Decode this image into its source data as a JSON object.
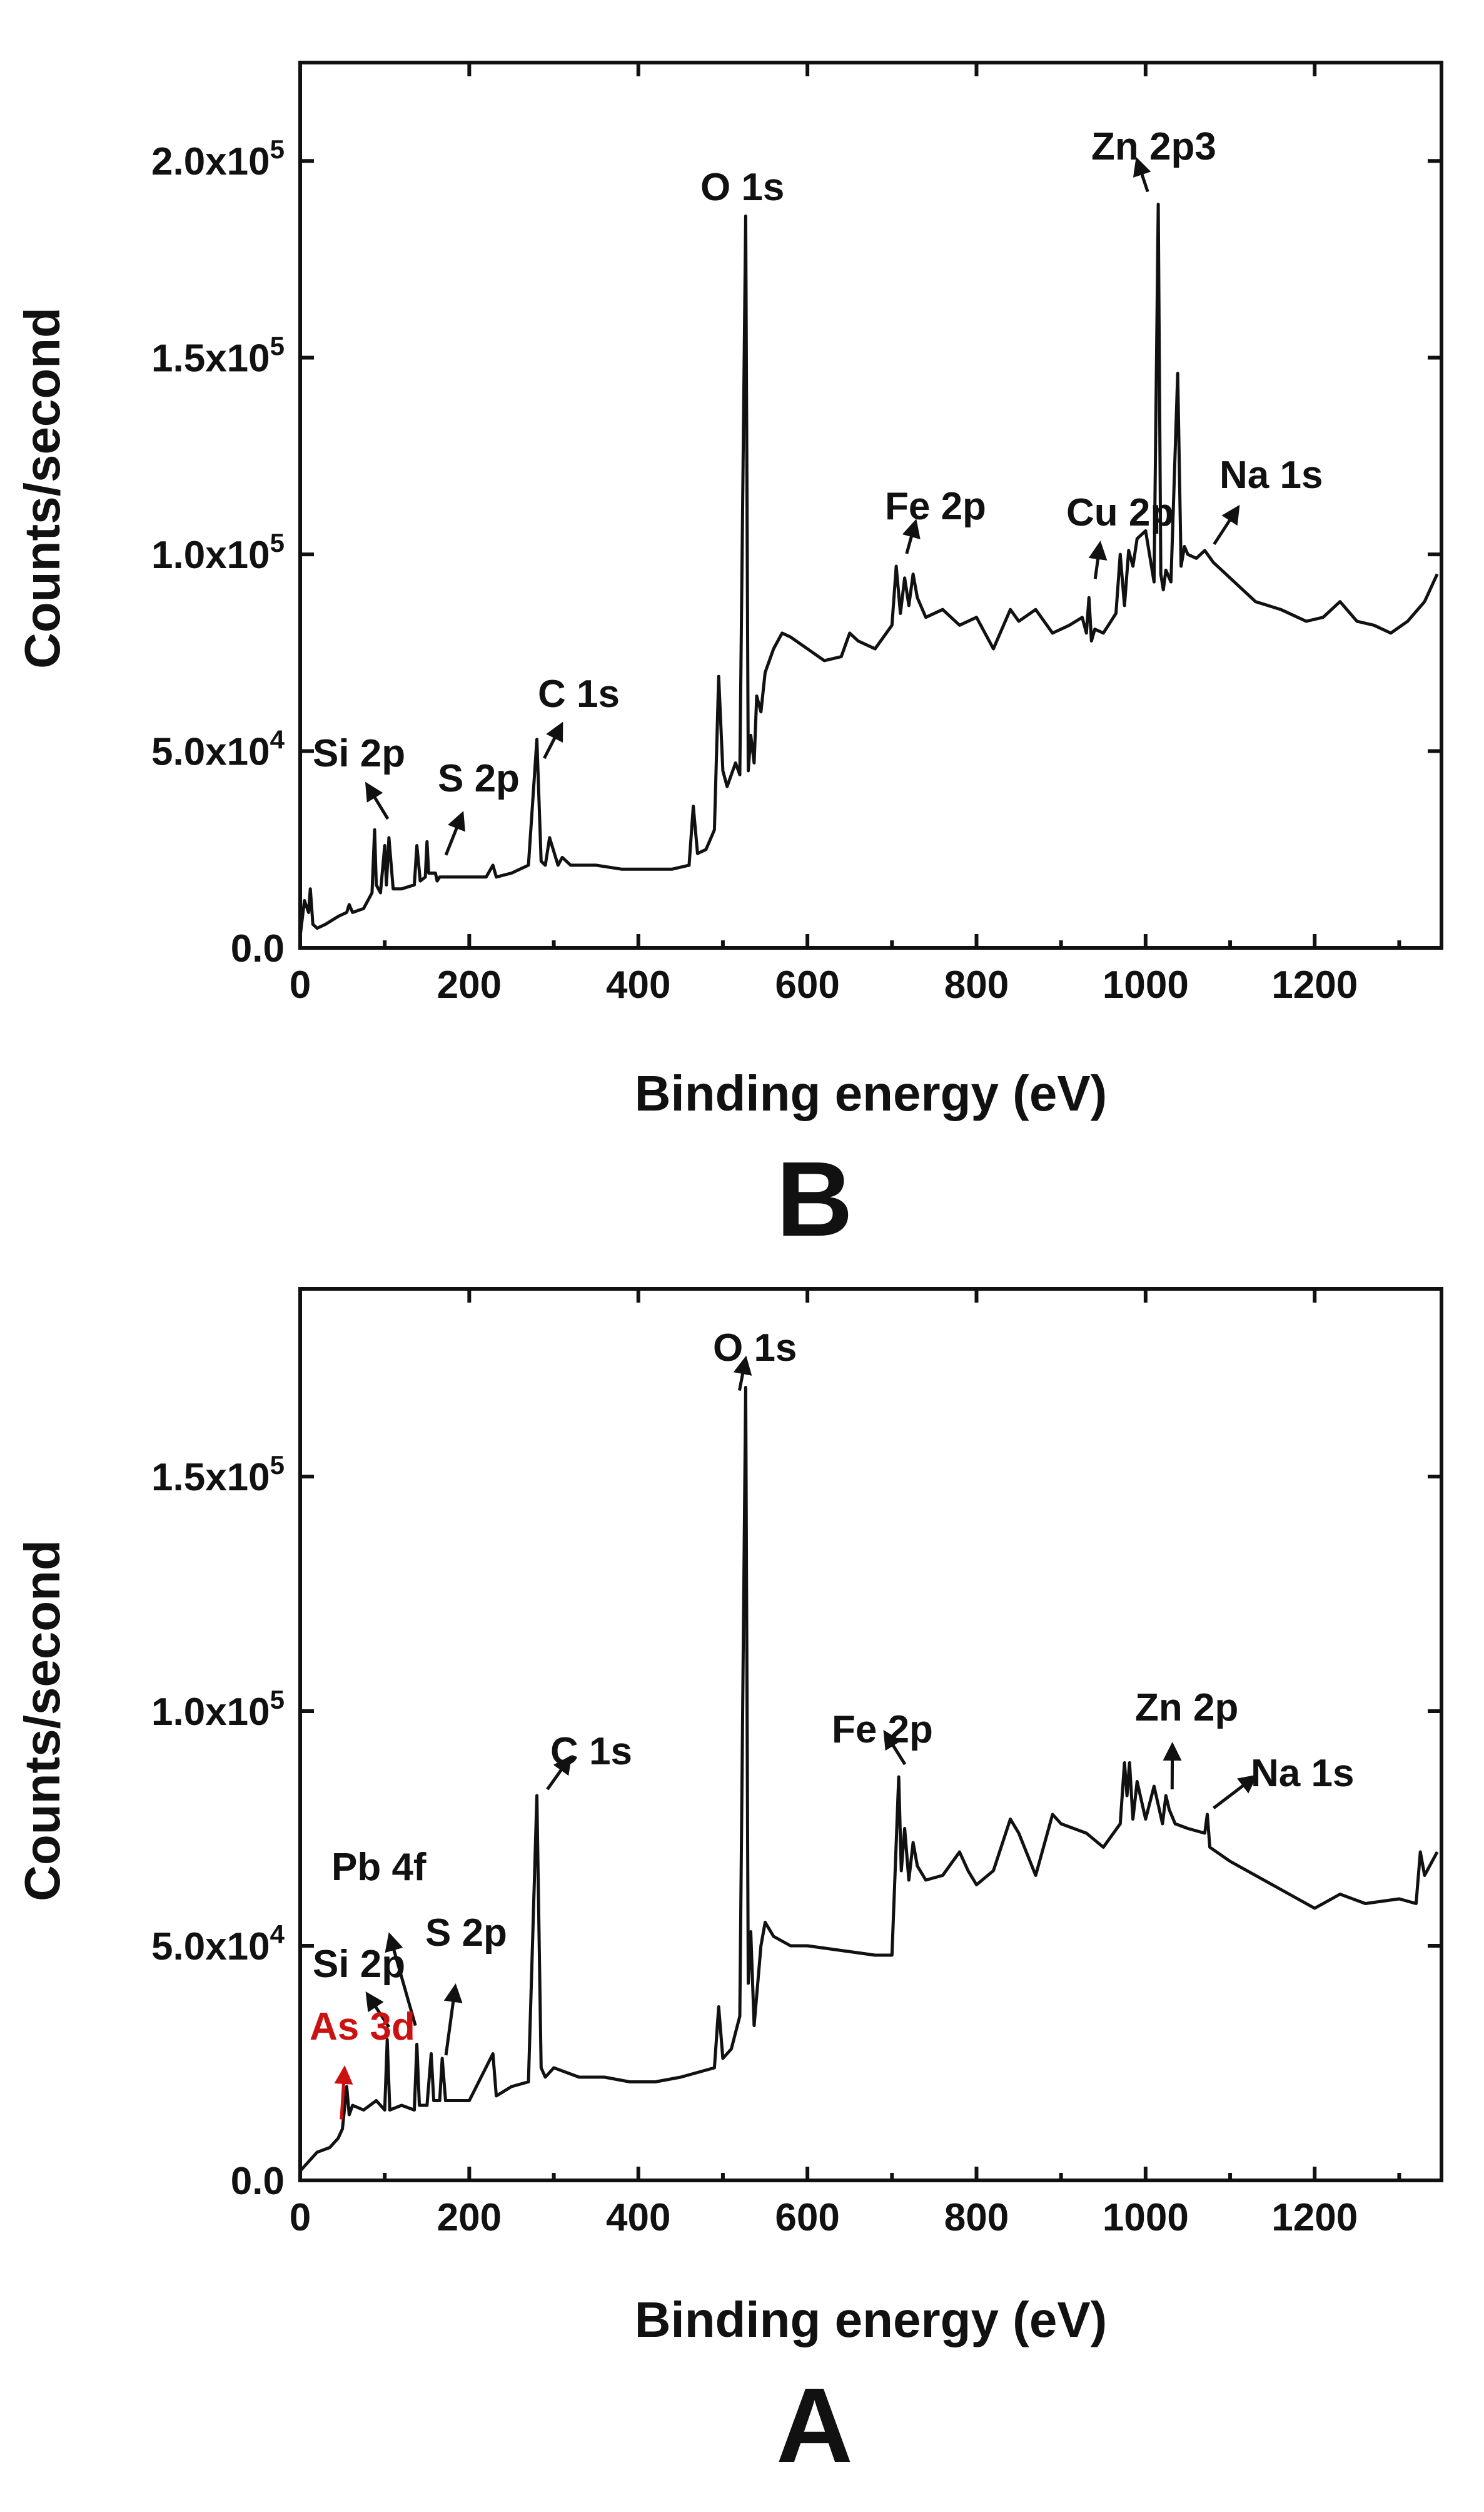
{
  "chart_data": [
    {
      "type": "line",
      "panel_label": "B",
      "xlabel": "Binding energy (eV)",
      "ylabel": "Counts/second",
      "xlim": [
        0,
        1350
      ],
      "ylim": [
        0,
        225000
      ],
      "xticks": [
        0,
        200,
        400,
        600,
        800,
        1000,
        1200
      ],
      "xtick_labels": [
        "0",
        "200",
        "400",
        "600",
        "800",
        "1000",
        "1200"
      ],
      "yticks": [
        0,
        50000,
        100000,
        150000,
        200000
      ],
      "ytick_labels": [
        {
          "mantissa": "0.0",
          "exp": ""
        },
        {
          "mantissa": "5.0x10",
          "exp": "4"
        },
        {
          "mantissa": "1.0x10",
          "exp": "5"
        },
        {
          "mantissa": "1.5x10",
          "exp": "5"
        },
        {
          "mantissa": "2.0x10",
          "exp": "5"
        }
      ],
      "grid": false,
      "series_color": "#111111",
      "x": [
        0,
        5,
        10,
        12,
        15,
        20,
        30,
        45,
        55,
        58,
        62,
        75,
        85,
        88,
        90,
        95,
        100,
        102,
        105,
        110,
        120,
        135,
        138,
        142,
        148,
        150,
        152,
        160,
        162,
        165,
        180,
        200,
        220,
        228,
        232,
        250,
        270,
        280,
        285,
        290,
        295,
        305,
        310,
        320,
        350,
        380,
        400,
        420,
        440,
        460,
        465,
        470,
        480,
        490,
        495,
        500,
        505,
        510,
        515,
        520,
        527,
        530,
        533,
        537,
        540,
        545,
        550,
        560,
        570,
        580,
        600,
        620,
        640,
        650,
        660,
        680,
        700,
        705,
        710,
        715,
        720,
        725,
        730,
        740,
        760,
        780,
        800,
        820,
        840,
        850,
        870,
        890,
        910,
        925,
        930,
        933,
        936,
        940,
        950,
        965,
        970,
        975,
        980,
        985,
        990,
        1000,
        1010,
        1015,
        1018,
        1021,
        1024,
        1030,
        1038,
        1042,
        1046,
        1050,
        1060,
        1070,
        1080,
        1100,
        1130,
        1160,
        1190,
        1210,
        1230,
        1250,
        1270,
        1290,
        1310,
        1330,
        1345
      ],
      "y": [
        3000,
        12000,
        9000,
        15000,
        6000,
        5000,
        6000,
        8000,
        9000,
        11000,
        9000,
        10000,
        14000,
        30000,
        16000,
        14000,
        26000,
        16000,
        28000,
        15000,
        15000,
        16000,
        26000,
        17000,
        18000,
        27000,
        19000,
        19000,
        17000,
        18000,
        18000,
        18000,
        18000,
        21000,
        18000,
        19000,
        21000,
        53000,
        22000,
        21000,
        28000,
        21000,
        23000,
        21000,
        21000,
        20000,
        20000,
        20000,
        20000,
        21000,
        36000,
        24000,
        25000,
        30000,
        69000,
        45000,
        41000,
        44000,
        47000,
        44000,
        186000,
        45000,
        54000,
        47000,
        64000,
        60000,
        70000,
        76000,
        80000,
        79000,
        76000,
        73000,
        74000,
        80000,
        78000,
        76000,
        82000,
        97000,
        85000,
        94000,
        87000,
        95000,
        89000,
        84000,
        86000,
        82000,
        84000,
        76000,
        86000,
        83000,
        86000,
        80000,
        82000,
        84000,
        80000,
        89000,
        78000,
        81000,
        80000,
        85000,
        100000,
        87000,
        101000,
        97000,
        104000,
        106000,
        93000,
        189000,
        95000,
        91000,
        96000,
        93000,
        146000,
        97000,
        102000,
        100000,
        99000,
        101000,
        98000,
        94000,
        88000,
        86000,
        83000,
        84000,
        88000,
        83000,
        82000,
        80000,
        83000,
        88000,
        95000
      ],
      "annotations": [
        {
          "text": "O 1s",
          "x": 530,
          "y": 186000,
          "color": "#111111",
          "arrow": false
        },
        {
          "text": "Zn 2p3",
          "x": 1021,
          "y": 189000,
          "color": "#111111",
          "arrow": true
        },
        {
          "text": "Fe 2p",
          "x": 710,
          "y": 97000,
          "color": "#111111",
          "arrow": true
        },
        {
          "text": "Cu 2p",
          "x": 933,
          "y": 89000,
          "color": "#111111",
          "arrow": true
        },
        {
          "text": "Na 1s",
          "x": 1070,
          "y": 101000,
          "color": "#111111",
          "arrow": true
        },
        {
          "text": "C 1s",
          "x": 285,
          "y": 45000,
          "color": "#111111",
          "arrow": true
        },
        {
          "text": "Si 2p",
          "x": 100,
          "y": 28000,
          "color": "#111111",
          "arrow": true
        },
        {
          "text": "S 2p",
          "x": 165,
          "y": 22000,
          "color": "#111111",
          "arrow": true
        }
      ]
    },
    {
      "type": "line",
      "panel_label": "A",
      "xlabel": "Binding energy (eV)",
      "ylabel": "Counts/second",
      "xlim": [
        0,
        1350
      ],
      "ylim": [
        0,
        190000
      ],
      "xticks": [
        0,
        200,
        400,
        600,
        800,
        1000,
        1200
      ],
      "xtick_labels": [
        "0",
        "200",
        "400",
        "600",
        "800",
        "1000",
        "1200"
      ],
      "yticks": [
        0,
        50000,
        100000,
        150000
      ],
      "ytick_labels": [
        {
          "mantissa": "0.0",
          "exp": ""
        },
        {
          "mantissa": "5.0x10",
          "exp": "4"
        },
        {
          "mantissa": "1.0x10",
          "exp": "5"
        },
        {
          "mantissa": "1.5x10",
          "exp": "5"
        }
      ],
      "grid": false,
      "series_color": "#111111",
      "x": [
        0,
        10,
        20,
        35,
        45,
        50,
        55,
        58,
        62,
        75,
        90,
        100,
        103,
        106,
        120,
        135,
        138,
        141,
        150,
        155,
        158,
        165,
        168,
        172,
        200,
        228,
        232,
        250,
        270,
        280,
        285,
        290,
        300,
        330,
        360,
        390,
        420,
        450,
        490,
        495,
        500,
        510,
        520,
        527,
        530,
        533,
        537,
        545,
        550,
        560,
        580,
        600,
        640,
        680,
        700,
        708,
        711,
        715,
        720,
        725,
        730,
        740,
        760,
        780,
        790,
        800,
        820,
        840,
        850,
        870,
        890,
        900,
        930,
        950,
        970,
        975,
        978,
        981,
        985,
        990,
        1000,
        1010,
        1020,
        1024,
        1028,
        1035,
        1050,
        1070,
        1073,
        1076,
        1100,
        1150,
        1200,
        1230,
        1260,
        1300,
        1320,
        1325,
        1330,
        1345
      ],
      "y": [
        2000,
        4000,
        6000,
        7000,
        9000,
        11000,
        20000,
        14000,
        16000,
        15000,
        17000,
        15000,
        30000,
        15000,
        16000,
        15000,
        29000,
        16000,
        16000,
        27000,
        17000,
        17000,
        26000,
        17000,
        17000,
        27000,
        18000,
        20000,
        21000,
        82000,
        24000,
        22000,
        24000,
        22000,
        22000,
        21000,
        21000,
        22000,
        24000,
        37000,
        26000,
        28000,
        35000,
        169000,
        42000,
        53000,
        33000,
        50000,
        55000,
        52000,
        50000,
        50000,
        49000,
        48000,
        48000,
        86000,
        66000,
        75000,
        64000,
        72000,
        67000,
        64000,
        65000,
        70000,
        66000,
        63000,
        66000,
        77000,
        74000,
        65000,
        78000,
        76000,
        74000,
        71000,
        76000,
        89000,
        82000,
        89000,
        77000,
        85000,
        77000,
        84000,
        76000,
        82000,
        79000,
        76000,
        75000,
        74000,
        78000,
        71000,
        68000,
        63000,
        58000,
        61000,
        59000,
        60000,
        59000,
        70000,
        65000,
        70000
      ],
      "annotations": [
        {
          "text": "O 1s",
          "x": 527,
          "y": 169000,
          "color": "#111111",
          "arrow": true
        },
        {
          "text": "Zn 2p",
          "x": 1024,
          "y": 82000,
          "color": "#111111",
          "arrow": true
        },
        {
          "text": "Fe 2p",
          "x": 708,
          "y": 86000,
          "color": "#111111",
          "arrow": true
        },
        {
          "text": "Na 1s",
          "x": 1073,
          "y": 78000,
          "color": "#111111",
          "arrow": true
        },
        {
          "text": "C 1s",
          "x": 285,
          "y": 82000,
          "color": "#111111",
          "arrow": true
        },
        {
          "text": "Pb 4f",
          "x": 140,
          "y": 29000,
          "color": "#111111",
          "arrow": true
        },
        {
          "text": "S 2p",
          "x": 165,
          "y": 26000,
          "color": "#111111",
          "arrow": true
        },
        {
          "text": "Si 2p",
          "x": 105,
          "y": 30000,
          "color": "#111111",
          "arrow": true
        },
        {
          "text": "As 3d",
          "x": 45,
          "y": 9000,
          "color": "#cc1111",
          "arrow": true
        }
      ]
    }
  ]
}
